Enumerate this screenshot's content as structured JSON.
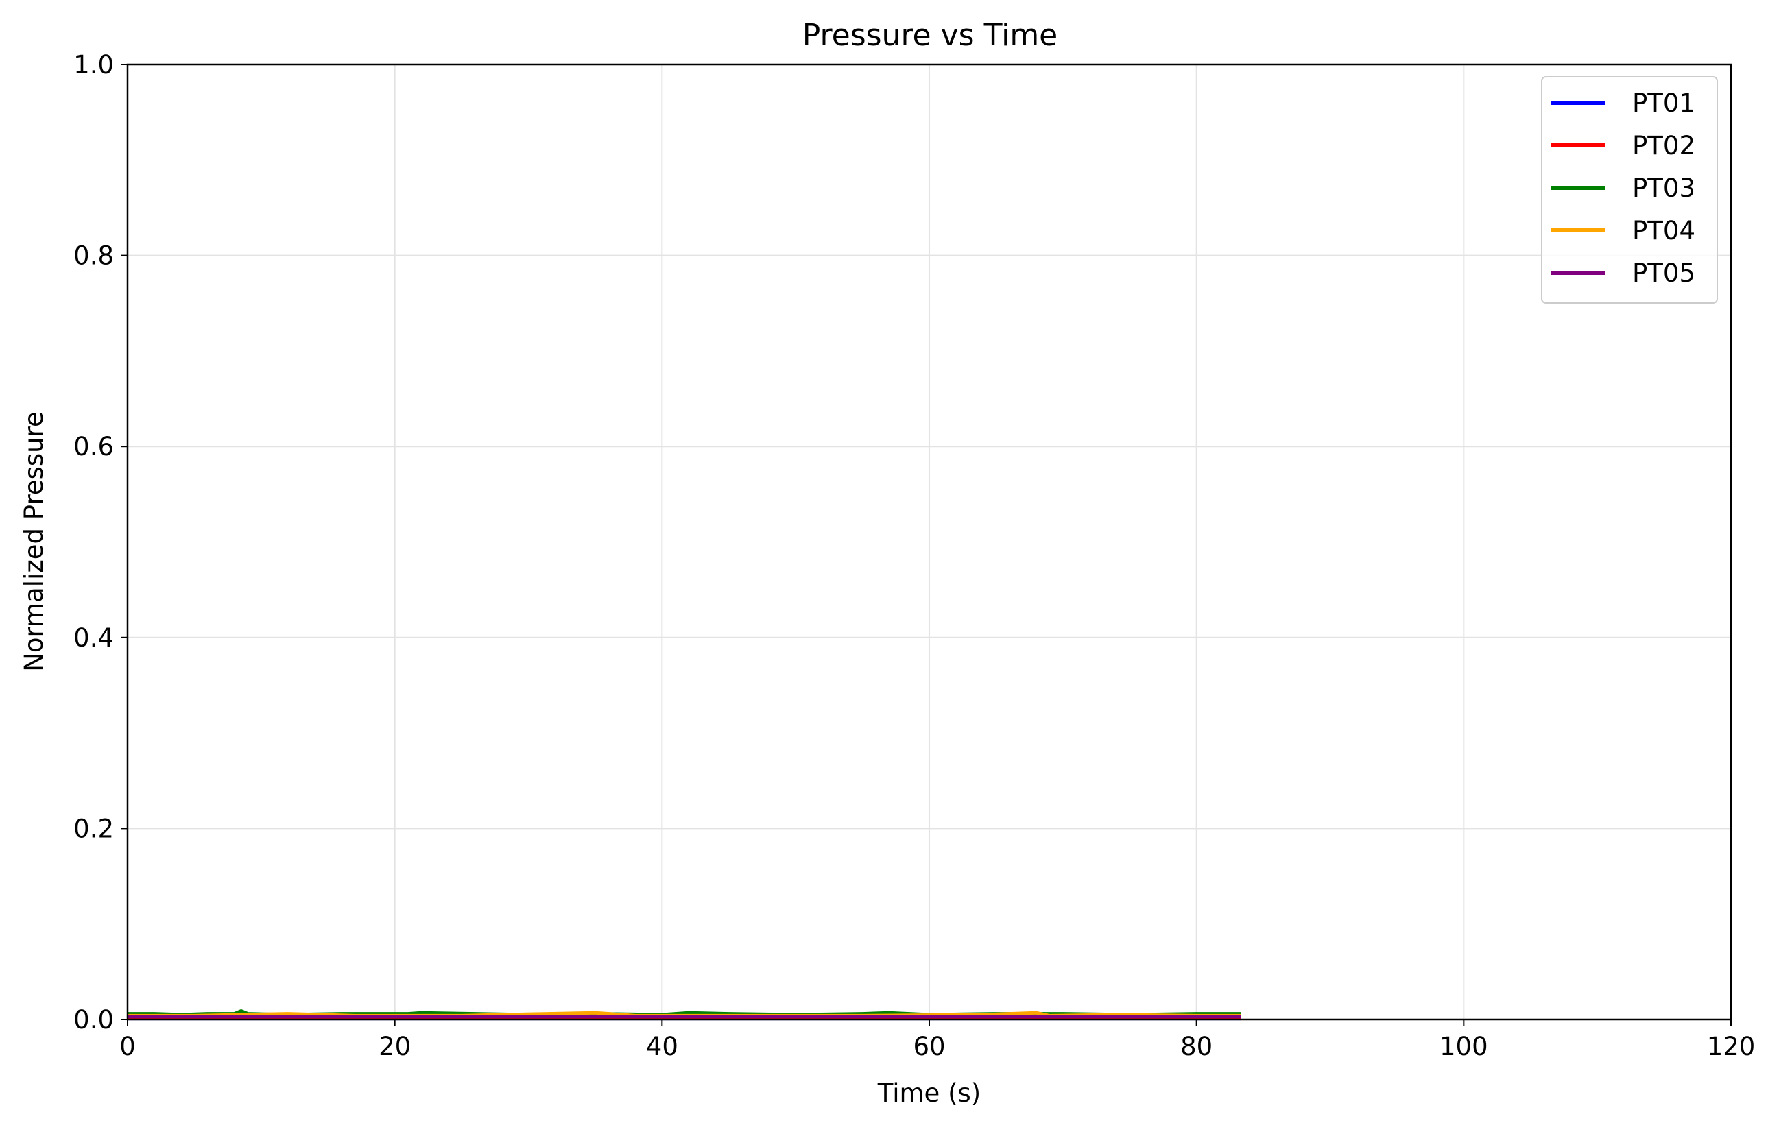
{
  "chart_data": {
    "type": "line",
    "title": "Pressure vs Time",
    "xlabel": "Time (s)",
    "ylabel": "Normalized Pressure",
    "xlim": [
      0,
      120
    ],
    "ylim": [
      0,
      1
    ],
    "xticks": [
      "0",
      "20",
      "40",
      "60",
      "80",
      "100",
      "120"
    ],
    "yticks": [
      "0.0",
      "0.2",
      "0.4",
      "0.6",
      "0.8",
      "1.0"
    ],
    "grid": true,
    "legend_position": "top-right",
    "series": [
      {
        "name": "PT01",
        "color": "#0000ff",
        "x": [
          0,
          83.3
        ],
        "y": [
          0.001,
          0.001
        ]
      },
      {
        "name": "PT02",
        "color": "#ff0000",
        "x": [
          0,
          83.3
        ],
        "y": [
          0.002,
          0.002
        ]
      },
      {
        "name": "PT03",
        "color": "#008000",
        "x": [
          0,
          2,
          4,
          6,
          8,
          8.5,
          9,
          12,
          16,
          21,
          22,
          30,
          35,
          40,
          42,
          45,
          50,
          55,
          57,
          60,
          65,
          70,
          75,
          80,
          83.3
        ],
        "y": [
          0.006,
          0.006,
          0.005,
          0.006,
          0.006,
          0.009,
          0.006,
          0.005,
          0.006,
          0.006,
          0.007,
          0.005,
          0.006,
          0.005,
          0.007,
          0.006,
          0.005,
          0.006,
          0.007,
          0.005,
          0.006,
          0.006,
          0.005,
          0.006,
          0.006
        ]
      },
      {
        "name": "PT04",
        "color": "#ffa500",
        "x": [
          0,
          5,
          12,
          17,
          25,
          28,
          35,
          38,
          46,
          55,
          64,
          68,
          69,
          74,
          80,
          83.3
        ],
        "y": [
          0.004,
          0.004,
          0.006,
          0.004,
          0.004,
          0.005,
          0.007,
          0.004,
          0.004,
          0.004,
          0.005,
          0.007,
          0.004,
          0.005,
          0.004,
          0.004
        ]
      },
      {
        "name": "PT05",
        "color": "#800080",
        "x": [
          0,
          83.3
        ],
        "y": [
          0.003,
          0.003
        ]
      }
    ]
  }
}
